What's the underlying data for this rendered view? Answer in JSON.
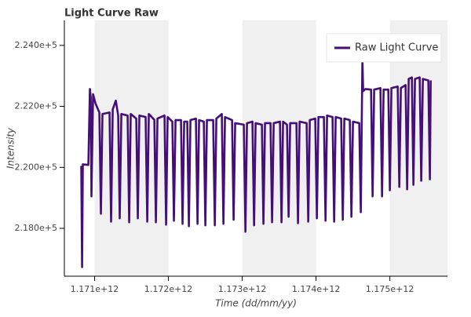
{
  "chart_data": {
    "type": "line",
    "title": "Light Curve Raw",
    "x_label": "Time (dd/mm/yy)",
    "y_label": "Intensity",
    "xlim": [
      1170590000000.0,
      1175780000000.0
    ],
    "ylim": [
      216430,
      224820
    ],
    "xticks": [
      {
        "value": 1171000000000.0,
        "label": "1.171e+12"
      },
      {
        "value": 1172000000000.0,
        "label": "1.172e+12"
      },
      {
        "value": 1173000000000.0,
        "label": "1.173e+12"
      },
      {
        "value": 1174000000000.0,
        "label": "1.174e+12"
      },
      {
        "value": 1175000000000.0,
        "label": "1.175e+12"
      }
    ],
    "yticks": [
      {
        "value": 218000,
        "label": "2.180e+5"
      },
      {
        "value": 220000,
        "label": "2.200e+5"
      },
      {
        "value": 222000,
        "label": "2.220e+5"
      },
      {
        "value": 224000,
        "label": "2.240e+5"
      }
    ],
    "band_fill": "#f0f0f0",
    "legend": "top-right",
    "series": [
      {
        "name": "Raw Light Curve",
        "color": "#440f76",
        "x": [
          1170819000000.0,
          1170830000000.0,
          1170840000000.0,
          1170915000000.0,
          1170936000000.0,
          1170947000000.0,
          1170957000000.0,
          1170979000000.0,
          1171011000000.0,
          1171064000000.0,
          1171085000000.0,
          1171106000000.0,
          1171202000000.0,
          1171223000000.0,
          1171245000000.0,
          1171287000000.0,
          1171319000000.0,
          1171340000000.0,
          1171362000000.0,
          1171447000000.0,
          1171468000000.0,
          1171489000000.0,
          1171564000000.0,
          1171585000000.0,
          1171606000000.0,
          1171691000000.0,
          1171713000000.0,
          1171734000000.0,
          1171809000000.0,
          1171830000000.0,
          1171851000000.0,
          1171947000000.0,
          1171968000000.0,
          1171989000000.0,
          1172053000000.0,
          1172074000000.0,
          1172096000000.0,
          1172170000000.0,
          1172191000000.0,
          1172213000000.0,
          1172255000000.0,
          1172277000000.0,
          1172298000000.0,
          1172372000000.0,
          1172394000000.0,
          1172415000000.0,
          1172479000000.0,
          1172500000000.0,
          1172521000000.0,
          1172606000000.0,
          1172628000000.0,
          1172649000000.0,
          1172723000000.0,
          1172745000000.0,
          1172766000000.0,
          1172862000000.0,
          1172883000000.0,
          1172904000000.0,
          1173021000000.0,
          1173043000000.0,
          1173064000000.0,
          1173138000000.0,
          1173160000000.0,
          1173181000000.0,
          1173266000000.0,
          1173287000000.0,
          1173308000000.0,
          1173383000000.0,
          1173404000000.0,
          1173426000000.0,
          1173511000000.0,
          1173532000000.0,
          1173553000000.0,
          1173606000000.0,
          1173628000000.0,
          1173649000000.0,
          1173734000000.0,
          1173755000000.0,
          1173777000000.0,
          1173872000000.0,
          1173894000000.0,
          1173915000000.0,
          1173989000000.0,
          1174011000000.0,
          1174032000000.0,
          1174106000000.0,
          1174128000000.0,
          1174149000000.0,
          1174223000000.0,
          1174245000000.0,
          1174266000000.0,
          1174340000000.0,
          1174362000000.0,
          1174383000000.0,
          1174457000000.0,
          1174479000000.0,
          1174500000000.0,
          1174585000000.0,
          1174606000000.0,
          1174628000000.0,
          1174638000000.0,
          1174670000000.0,
          1174745000000.0,
          1174766000000.0,
          1174787000000.0,
          1174872000000.0,
          1174894000000.0,
          1174915000000.0,
          1174979000000.0,
          1175000000000.0,
          1175021000000.0,
          1175106000000.0,
          1175128000000.0,
          1175149000000.0,
          1175213000000.0,
          1175234000000.0,
          1175255000000.0,
          1175298000000.0,
          1175319000000.0,
          1175340000000.0,
          1175404000000.0,
          1175425000000.0,
          1175447000000.0,
          1175521000000.0,
          1175542000000.0,
          1175553000000.0
        ],
        "values": [
          220050,
          216730,
          220100,
          220080,
          222570,
          222300,
          219050,
          222400,
          222100,
          221800,
          218480,
          221750,
          221800,
          218220,
          221900,
          222190,
          221700,
          218330,
          221750,
          221700,
          218200,
          221750,
          221600,
          218330,
          221700,
          221650,
          218220,
          221750,
          221560,
          218200,
          221600,
          221700,
          218120,
          221650,
          221500,
          218250,
          221550,
          221550,
          218150,
          221500,
          221500,
          218070,
          221550,
          221600,
          218150,
          221550,
          221500,
          218100,
          221550,
          221550,
          218100,
          221600,
          221750,
          218150,
          221650,
          221550,
          218280,
          221450,
          221400,
          217890,
          221450,
          221500,
          218100,
          221450,
          221400,
          218150,
          221450,
          221450,
          218200,
          221450,
          221500,
          218200,
          221500,
          221400,
          218380,
          221450,
          221450,
          218170,
          221500,
          221450,
          218220,
          221550,
          221600,
          218330,
          221650,
          221650,
          218250,
          221700,
          221650,
          218220,
          221650,
          221600,
          218280,
          221600,
          221550,
          218380,
          221500,
          221450,
          218530,
          223550,
          222500,
          222570,
          222550,
          219050,
          222550,
          222600,
          219050,
          222550,
          222550,
          219250,
          222600,
          222650,
          219360,
          222600,
          222700,
          219280,
          222900,
          222950,
          219430,
          222900,
          222950,
          219560,
          222900,
          222850,
          219610,
          222850
        ]
      }
    ]
  }
}
